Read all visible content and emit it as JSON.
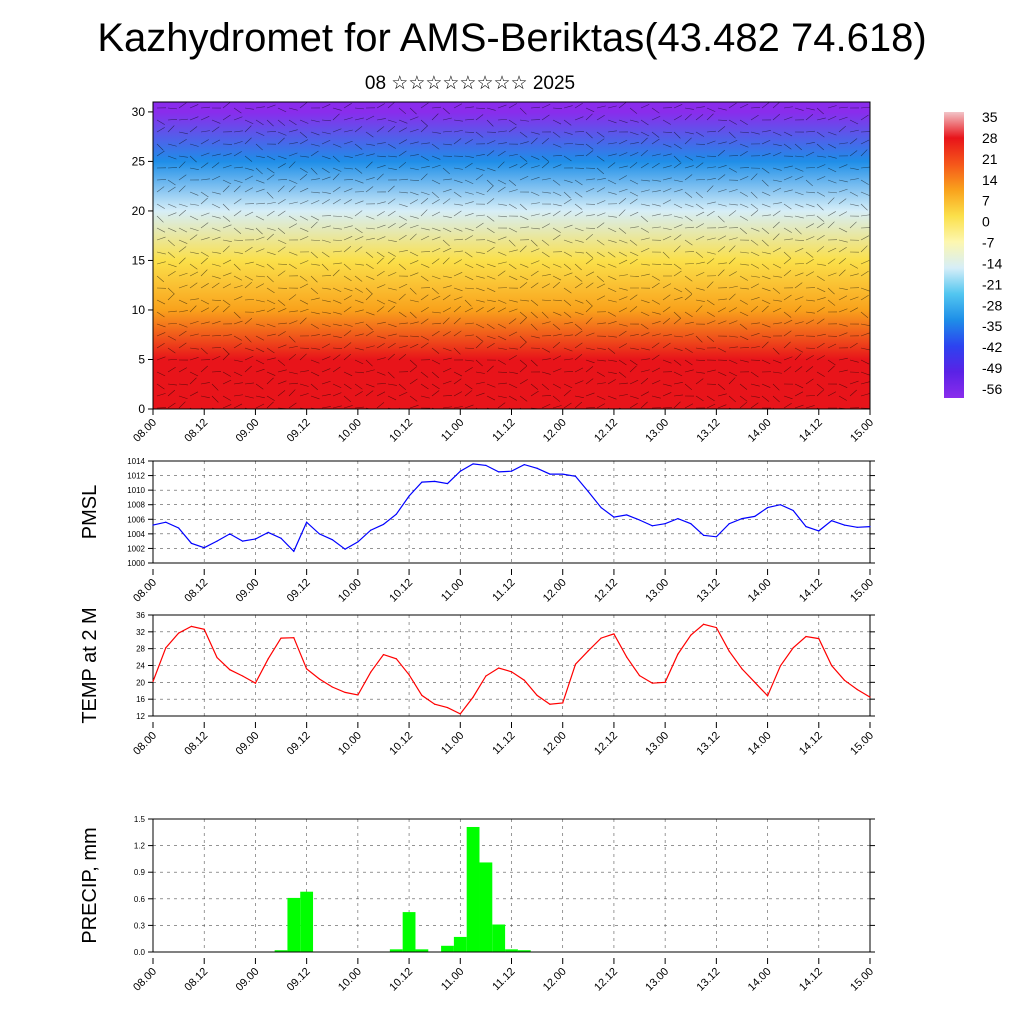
{
  "header": {
    "title": "Kazhydromet for AMS-Beriktas(43.482 74.618)",
    "subtitle": "08 ☆☆☆☆☆☆☆☆ 2025"
  },
  "time_ticks": [
    "08.00",
    "08.12",
    "09.00",
    "09.12",
    "10.00",
    "10.12",
    "11.00",
    "11.12",
    "12.00",
    "12.12",
    "13.00",
    "13.12",
    "14.00",
    "14.12",
    "15.00"
  ],
  "chart_data": [
    {
      "type": "heatmap",
      "title": "",
      "ylabel": "",
      "ylim": [
        0,
        31
      ],
      "yticks": [
        0,
        5,
        10,
        15,
        20,
        25,
        30
      ],
      "description_values": "temperature field (°C) vs time and level with wind barbs",
      "levels": [
        0,
        5,
        10,
        15,
        20,
        25,
        30
      ],
      "temperature_by_level": [
        30,
        24,
        12,
        0,
        -14,
        -35,
        -56
      ],
      "colorbar": {
        "labels": [
          "35",
          "28",
          "21",
          "14",
          "7",
          "0",
          "-7",
          "-14",
          "-21",
          "-28",
          "-35",
          "-42",
          "-49",
          "-56"
        ],
        "range": [
          -56,
          35
        ],
        "colors": [
          "#f2c4c8",
          "#e8141a",
          "#f5561a",
          "#f9a21c",
          "#fbe04a",
          "#fdf7b0",
          "#d6eef8",
          "#52c6f0",
          "#1e8ee8",
          "#2c43f0",
          "#5a22e6",
          "#8a2cec"
        ]
      }
    },
    {
      "type": "line",
      "ylabel": "PMSL",
      "ylim": [
        1000,
        1014
      ],
      "yticks": [
        "1000",
        "1002",
        "1004",
        "1006",
        "1008",
        "1010",
        "1012",
        "1014"
      ],
      "color": "#0000ff",
      "x": [
        "08.00",
        "08.03",
        "08.06",
        "08.09",
        "08.12",
        "08.15",
        "08.18",
        "08.21",
        "09.00",
        "09.03",
        "09.06",
        "09.09",
        "09.12",
        "09.15",
        "09.18",
        "09.21",
        "10.00",
        "10.03",
        "10.06",
        "10.09",
        "10.12",
        "10.15",
        "10.18",
        "10.21",
        "11.00",
        "11.03",
        "11.06",
        "11.09",
        "11.12",
        "11.15",
        "11.18",
        "11.21",
        "12.00",
        "12.03",
        "12.06",
        "12.09",
        "12.12",
        "12.15",
        "12.18",
        "12.21",
        "13.00",
        "13.03",
        "13.06",
        "13.09",
        "13.12",
        "13.15",
        "13.18",
        "13.21",
        "14.00",
        "14.03",
        "14.06",
        "14.09",
        "14.12",
        "14.15",
        "14.18",
        "14.21",
        "15.00"
      ],
      "values": [
        1005.2,
        1005.6,
        1004.8,
        1002.7,
        1002.1,
        1003,
        1004,
        1003,
        1003.3,
        1004.2,
        1003.4,
        1001.6,
        1005.6,
        1004,
        1003.2,
        1001.9,
        1002.9,
        1004.5,
        1005.3,
        1006.7,
        1009.2,
        1011.1,
        1011.2,
        1010.9,
        1012.6,
        1013.6,
        1013.4,
        1012.5,
        1012.6,
        1013.5,
        1013,
        1012.2,
        1012.2,
        1011.9,
        1009.8,
        1007.6,
        1006.3,
        1006.6,
        1005.9,
        1005.1,
        1005.4,
        1006.1,
        1005.4,
        1003.8,
        1003.6,
        1005.4,
        1006.1,
        1006.4,
        1007.6,
        1008,
        1007.2,
        1005,
        1004.4,
        1005.8,
        1005.2,
        1004.9,
        1005
      ]
    },
    {
      "type": "line",
      "ylabel": "TEMP at 2 M",
      "ylim": [
        12,
        36
      ],
      "yticks": [
        "12",
        "16",
        "20",
        "24",
        "28",
        "32",
        "36"
      ],
      "color": "#ff0000",
      "x": [
        "08.00",
        "08.03",
        "08.06",
        "08.09",
        "08.12",
        "08.15",
        "08.18",
        "08.21",
        "09.00",
        "09.03",
        "09.06",
        "09.09",
        "09.12",
        "09.15",
        "09.18",
        "09.21",
        "10.00",
        "10.03",
        "10.06",
        "10.09",
        "10.12",
        "10.15",
        "10.18",
        "10.21",
        "11.00",
        "11.03",
        "11.06",
        "11.09",
        "11.12",
        "11.15",
        "11.18",
        "11.21",
        "12.00",
        "12.03",
        "12.06",
        "12.09",
        "12.12",
        "12.15",
        "12.18",
        "12.21",
        "13.00",
        "13.03",
        "13.06",
        "13.09",
        "13.12",
        "13.15",
        "13.18",
        "13.21",
        "14.00",
        "14.03",
        "14.06",
        "14.09",
        "14.12",
        "14.15",
        "14.18",
        "14.21",
        "15.00"
      ],
      "values": [
        20.2,
        28.2,
        31.7,
        33.3,
        32.6,
        25.9,
        23,
        21.5,
        19.8,
        25.6,
        30.5,
        30.6,
        23.2,
        20.8,
        18.9,
        17.6,
        17,
        22.4,
        26.6,
        25.6,
        21.8,
        16.9,
        14.8,
        14,
        12.5,
        16.5,
        21.5,
        23.4,
        22.5,
        20.5,
        16.9,
        14.8,
        15.1,
        24.3,
        27.5,
        30.5,
        31.5,
        26,
        21.6,
        19.8,
        20,
        26.7,
        31.2,
        33.8,
        33,
        27.4,
        23.2,
        20,
        16.8,
        23.9,
        28.2,
        30.9,
        30.4,
        24,
        20.5,
        18.3,
        16.5
      ]
    },
    {
      "type": "bar",
      "ylabel": "PRECIP, mm",
      "ylim": [
        0,
        1.5
      ],
      "yticks": [
        "0.0",
        "0.3",
        "0.6",
        "0.9",
        "1.2",
        "1.5"
      ],
      "color": "#00ff00",
      "x": [
        "09.06",
        "09.09",
        "09.12",
        "10.09",
        "10.12",
        "10.15",
        "10.21",
        "11.00",
        "11.03",
        "11.06",
        "11.09",
        "11.12",
        "11.15"
      ],
      "values": [
        0.02,
        0.61,
        0.68,
        0.03,
        0.45,
        0.03,
        0.07,
        0.17,
        1.41,
        1.01,
        0.31,
        0.03,
        0.02
      ]
    }
  ]
}
